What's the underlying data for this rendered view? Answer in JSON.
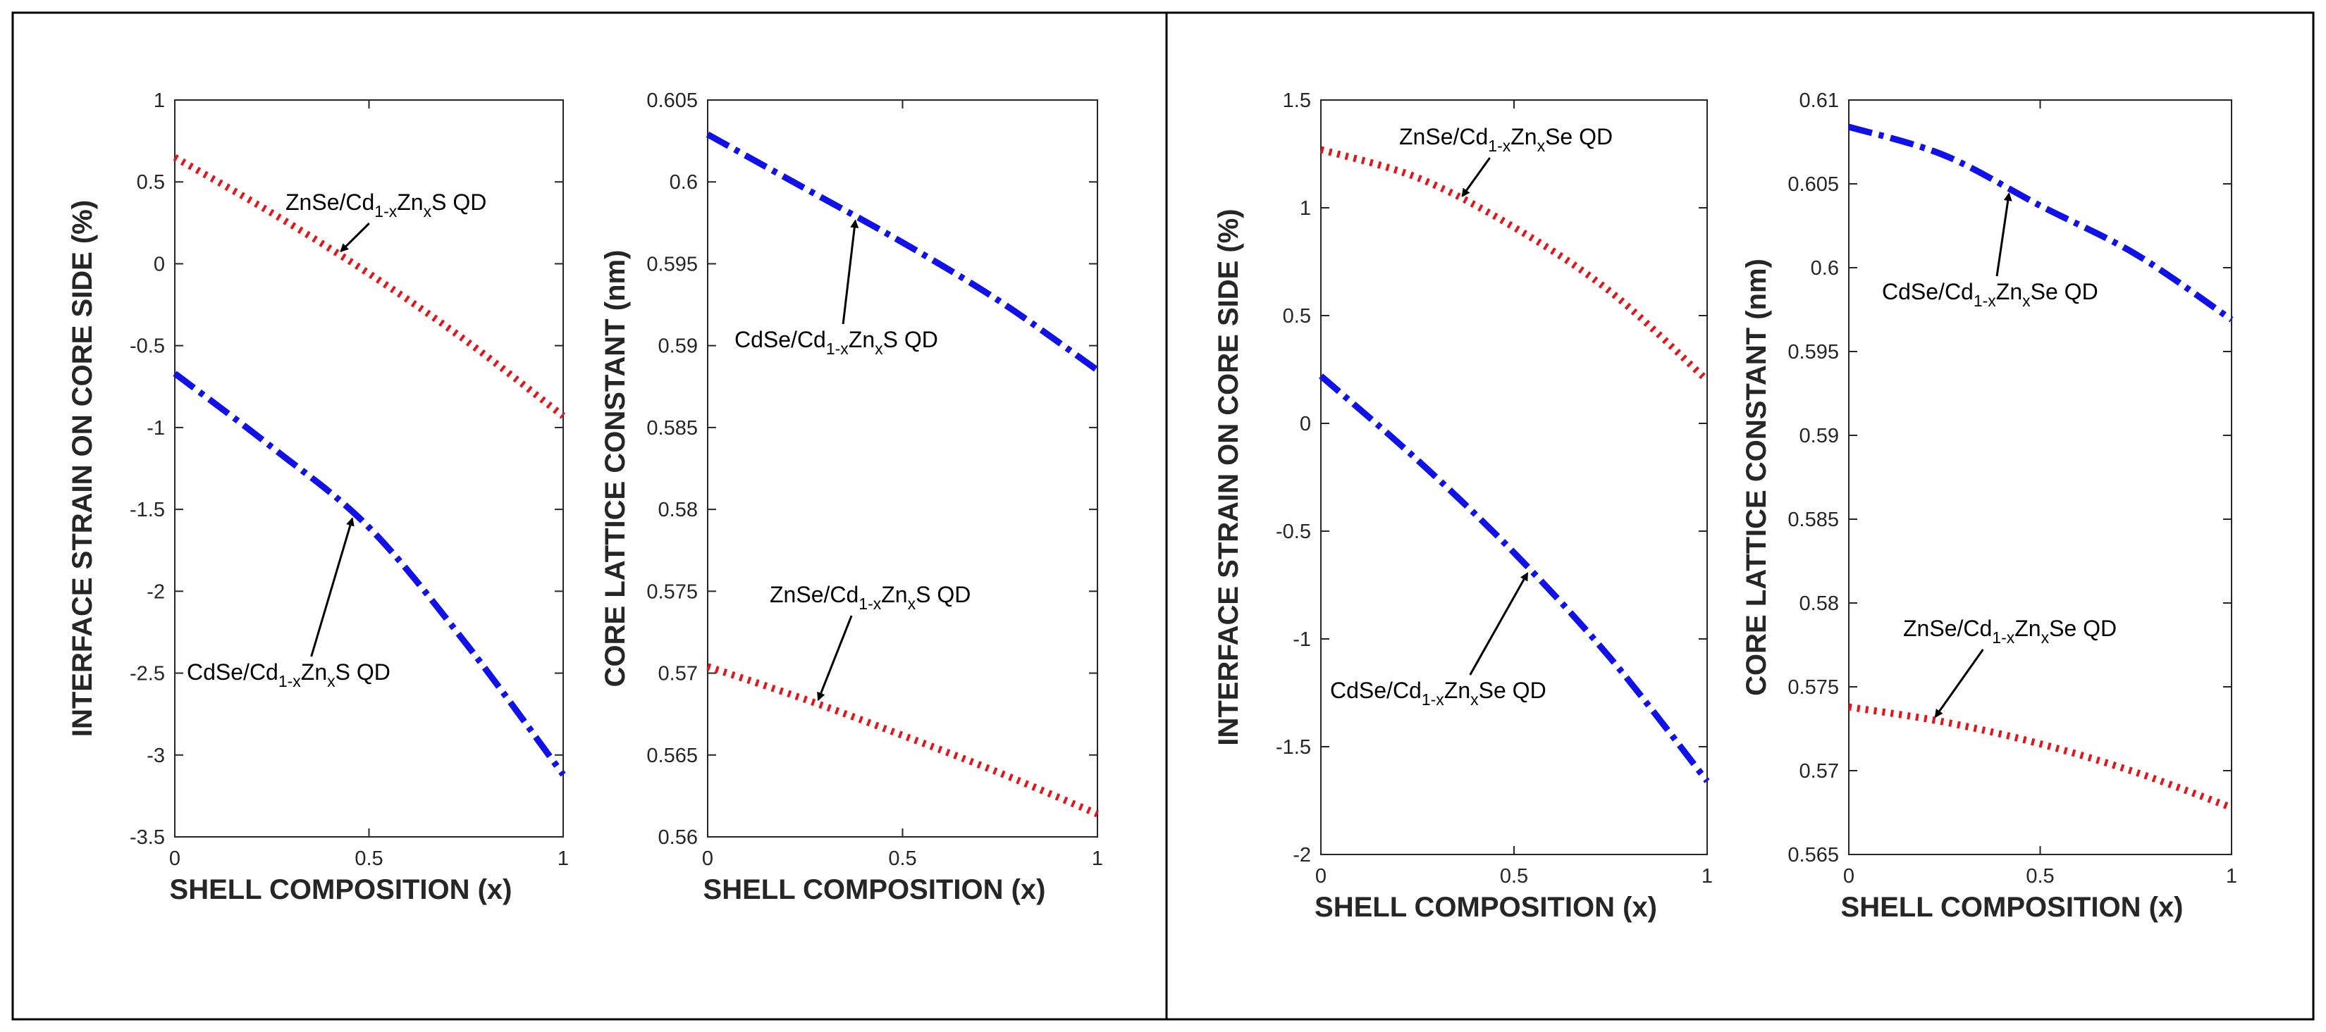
{
  "chart_data": [
    {
      "type": "line",
      "xlabel": "SHELL COMPOSITION (x)",
      "ylabel": "INTERFACE STRAIN ON CORE SIDE (%)",
      "xlim": [
        0,
        1
      ],
      "ylim": [
        -3.5,
        1
      ],
      "xticks": [
        0,
        0.5,
        1
      ],
      "yticks": [
        -3.5,
        -3,
        -2.5,
        -2,
        -1.5,
        -1,
        -0.5,
        0,
        0.5,
        1
      ],
      "x": [
        0,
        0.25,
        0.5,
        0.75,
        1
      ],
      "series": [
        {
          "name": "ZnSe/Cd1-xZnxS QD",
          "color": "#e0161b",
          "style": "dotted",
          "values": [
            0.65,
            0.31,
            -0.06,
            -0.47,
            -0.93
          ],
          "annotation": {
            "label": [
              "ZnSe/Cd",
              "1-x",
              "Zn",
              "x",
              "S QD"
            ],
            "arrow_x": 0.42
          }
        },
        {
          "name": "CdSe/Cd1-xZnxS QD",
          "color": "#1010e8",
          "style": "dashdot",
          "values": [
            -0.67,
            -1.12,
            -1.61,
            -2.32,
            -3.12
          ],
          "annotation": {
            "label": [
              "CdSe/Cd",
              "1-x",
              "Zn",
              "x",
              "S QD"
            ],
            "arrow_x": 0.46
          }
        }
      ]
    },
    {
      "type": "line",
      "xlabel": "SHELL COMPOSITION (x)",
      "ylabel": "CORE LATTICE CONSTANT (nm)",
      "xlim": [
        0,
        1
      ],
      "ylim": [
        0.56,
        0.605
      ],
      "xticks": [
        0,
        0.5,
        1
      ],
      "yticks": [
        0.56,
        0.565,
        0.57,
        0.575,
        0.58,
        0.585,
        0.59,
        0.595,
        0.6,
        0.605
      ],
      "x": [
        0,
        0.25,
        0.5,
        0.75,
        1
      ],
      "series": [
        {
          "name": "CdSe/Cd1-xZnxS QD",
          "color": "#1010e8",
          "style": "dashdot",
          "values": [
            0.6029,
            0.5996,
            0.5963,
            0.5927,
            0.5885
          ],
          "annotation": {
            "label": [
              "CdSe/Cd",
              "1-x",
              "Zn",
              "x",
              "S QD"
            ],
            "arrow_x": 0.38
          }
        },
        {
          "name": "ZnSe/Cd1-xZnxS QD",
          "color": "#e0161b",
          "style": "dotted",
          "values": [
            0.5704,
            0.5684,
            0.5662,
            0.5639,
            0.5614
          ],
          "annotation": {
            "label": [
              "ZnSe/Cd",
              "1-x",
              "Zn",
              "x",
              "S QD"
            ],
            "arrow_x": 0.28
          }
        }
      ]
    },
    {
      "type": "line",
      "xlabel": "SHELL COMPOSITION (x)",
      "ylabel": "INTERFACE STRAIN ON CORE SIDE (%)",
      "xlim": [
        0,
        1
      ],
      "ylim": [
        -2,
        1.5
      ],
      "xticks": [
        0,
        0.5,
        1
      ],
      "yticks": [
        -2,
        -1.5,
        -1,
        -0.5,
        0,
        0.5,
        1,
        1.5
      ],
      "x": [
        0,
        0.25,
        0.5,
        0.75,
        1
      ],
      "series": [
        {
          "name": "ZnSe/Cd1-xZnxSe QD",
          "color": "#e0161b",
          "style": "dotted",
          "values": [
            1.27,
            1.14,
            0.91,
            0.61,
            0.2
          ],
          "annotation": {
            "label": [
              "ZnSe/Cd",
              "1-x",
              "Zn",
              "x",
              "Se QD"
            ],
            "arrow_x": 0.36
          }
        },
        {
          "name": "CdSe/Cd1-xZnxSe QD",
          "color": "#1010e8",
          "style": "dashdot",
          "values": [
            0.22,
            -0.17,
            -0.6,
            -1.09,
            -1.66
          ],
          "annotation": {
            "label": [
              "CdSe/Cd",
              "1-x",
              "Zn",
              "x",
              "Se QD"
            ],
            "arrow_x": 0.54
          }
        }
      ]
    },
    {
      "type": "line",
      "xlabel": "SHELL COMPOSITION (x)",
      "ylabel": "CORE LATTICE CONSTANT (nm)",
      "xlim": [
        0,
        1
      ],
      "ylim": [
        0.565,
        0.61
      ],
      "xticks": [
        0,
        0.5,
        1
      ],
      "yticks": [
        0.565,
        0.57,
        0.575,
        0.58,
        0.585,
        0.59,
        0.595,
        0.6,
        0.605,
        0.61
      ],
      "x": [
        0,
        0.25,
        0.5,
        0.75,
        1
      ],
      "series": [
        {
          "name": "CdSe/Cd1-xZnxSe QD",
          "color": "#1010e8",
          "style": "dashdot",
          "values": [
            0.6084,
            0.6067,
            0.6037,
            0.6008,
            0.5969
          ],
          "annotation": {
            "label": [
              "CdSe/Cd",
              "1-x",
              "Zn",
              "x",
              "Se QD"
            ],
            "arrow_x": 0.42
          }
        },
        {
          "name": "ZnSe/Cd1-xZnxSe QD",
          "color": "#e0161b",
          "style": "dotted",
          "values": [
            0.5738,
            0.5729,
            0.5716,
            0.5699,
            0.5678
          ],
          "annotation": {
            "label": [
              "ZnSe/Cd",
              "1-x",
              "Zn",
              "x",
              "Se QD"
            ],
            "arrow_x": 0.22
          }
        }
      ]
    }
  ]
}
